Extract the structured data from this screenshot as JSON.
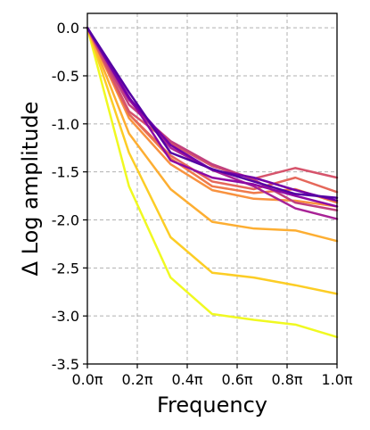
{
  "chart_data": {
    "type": "line",
    "title": "",
    "xlabel": "Frequency",
    "ylabel": "Δ Log amplitude",
    "xlim": [
      0,
      1
    ],
    "ylim": [
      -3.5,
      0.15
    ],
    "grid": true,
    "legend": "none",
    "x": [
      0,
      0.1667,
      0.3333,
      0.5,
      0.6667,
      0.8333,
      1.0
    ],
    "x_ticks": [
      {
        "value": 0.0,
        "label": "0.0π"
      },
      {
        "value": 0.2,
        "label": "0.2π"
      },
      {
        "value": 0.4,
        "label": "0.4π"
      },
      {
        "value": 0.6,
        "label": "0.6π"
      },
      {
        "value": 0.8,
        "label": "0.8π"
      },
      {
        "value": 1.0,
        "label": "1.0π"
      }
    ],
    "y_ticks": [
      {
        "value": 0.0,
        "label": "0.0"
      },
      {
        "value": -0.5,
        "label": "-0.5"
      },
      {
        "value": -1.0,
        "label": "-1.0"
      },
      {
        "value": -1.5,
        "label": "-1.5"
      },
      {
        "value": -2.0,
        "label": "-2.0"
      },
      {
        "value": -2.5,
        "label": "-2.5"
      },
      {
        "value": -3.0,
        "label": "-3.0"
      },
      {
        "value": -3.5,
        "label": "-3.5"
      }
    ],
    "series": [
      {
        "color": "#f0f921",
        "values": [
          0,
          -1.65,
          -2.6,
          -2.98,
          -3.04,
          -3.09,
          -3.22
        ]
      },
      {
        "color": "#fccd25",
        "values": [
          0,
          -1.3,
          -2.18,
          -2.55,
          -2.6,
          -2.68,
          -2.77
        ]
      },
      {
        "color": "#fdae32",
        "values": [
          0,
          -1.1,
          -1.68,
          -2.02,
          -2.09,
          -2.11,
          -2.22
        ]
      },
      {
        "color": "#f8923f",
        "values": [
          0,
          -0.94,
          -1.42,
          -1.69,
          -1.78,
          -1.8,
          -1.86
        ]
      },
      {
        "color": "#ef7a4c",
        "values": [
          0,
          -0.9,
          -1.36,
          -1.65,
          -1.72,
          -1.68,
          -1.82
        ]
      },
      {
        "color": "#e5675a",
        "values": [
          0,
          -0.9,
          -1.33,
          -1.6,
          -1.68,
          -1.56,
          -1.71
        ]
      },
      {
        "color": "#d6546c",
        "values": [
          0,
          -0.87,
          -1.2,
          -1.44,
          -1.57,
          -1.46,
          -1.56
        ]
      },
      {
        "color": "#c1407e",
        "values": [
          0,
          -0.8,
          -1.18,
          -1.42,
          -1.58,
          -1.82,
          -1.9
        ]
      },
      {
        "color": "#a82296",
        "values": [
          0,
          -0.75,
          -1.25,
          -1.48,
          -1.65,
          -1.88,
          -1.99
        ]
      },
      {
        "color": "#8d09a4",
        "values": [
          0,
          -0.72,
          -1.38,
          -1.56,
          -1.63,
          -1.75,
          -1.86
        ]
      },
      {
        "color": "#7301a8",
        "values": [
          0,
          -0.73,
          -1.22,
          -1.48,
          -1.56,
          -1.69,
          -1.8
        ]
      },
      {
        "color": "#5402a3",
        "values": [
          0,
          -0.67,
          -1.3,
          -1.47,
          -1.6,
          -1.73,
          -1.77
        ]
      }
    ]
  }
}
